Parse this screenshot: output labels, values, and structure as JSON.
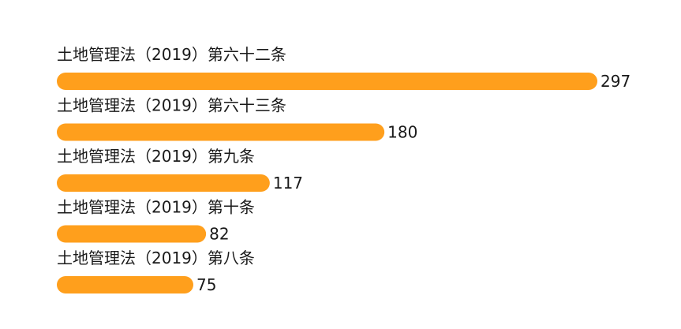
{
  "chart_data": {
    "type": "bar",
    "orientation": "horizontal",
    "categories": [
      "土地管理法（2019）第六十二条",
      "土地管理法（2019）第六十三条",
      "土地管理法（2019）第九条",
      "土地管理法（2019）第十条",
      "土地管理法（2019）第八条"
    ],
    "values": [
      297,
      180,
      117,
      82,
      75
    ],
    "data_labels": [
      "297",
      "180",
      "117",
      "82",
      "75"
    ],
    "bar_color": "#ff9f1c",
    "xlim": [
      0,
      297
    ],
    "grid": false,
    "legend": "none"
  }
}
